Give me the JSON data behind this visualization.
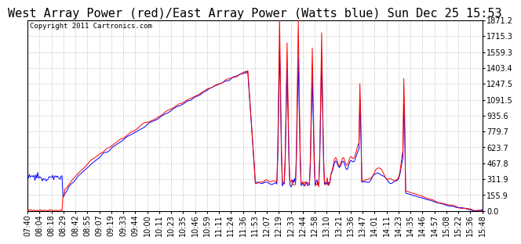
{
  "title": "West Array Power (red)/East Array Power (Watts blue) Sun Dec 25 15:53",
  "copyright": "Copyright 2011 Cartronics.com",
  "background_color": "#ffffff",
  "plot_bg_color": "#ffffff",
  "grid_color": "#bbbbbb",
  "line_color_west": "#ff0000",
  "line_color_east": "#0000ff",
  "ylim": [
    0.0,
    1871.2
  ],
  "ytick_labels": [
    "0.0",
    "155.9",
    "311.9",
    "467.8",
    "623.7",
    "779.7",
    "935.6",
    "1091.5",
    "1247.5",
    "1403.4",
    "1559.3",
    "1715.3",
    "1871.2"
  ],
  "ytick_values": [
    0.0,
    155.9,
    311.9,
    467.8,
    623.7,
    779.7,
    935.6,
    1091.5,
    1247.5,
    1403.4,
    1559.3,
    1715.3,
    1871.2
  ],
  "xtick_labels": [
    "07:40",
    "08:04",
    "08:18",
    "08:29",
    "08:42",
    "08:55",
    "09:07",
    "09:19",
    "09:33",
    "09:44",
    "10:00",
    "10:11",
    "10:23",
    "10:35",
    "10:46",
    "10:59",
    "11:11",
    "11:24",
    "11:36",
    "11:53",
    "12:07",
    "12:19",
    "12:33",
    "12:44",
    "12:58",
    "13:10",
    "13:21",
    "13:36",
    "13:47",
    "14:01",
    "14:11",
    "14:23",
    "14:35",
    "14:46",
    "14:57",
    "15:08",
    "15:22",
    "15:36",
    "15:48"
  ],
  "title_fontsize": 11,
  "copyright_fontsize": 6.5,
  "tick_fontsize": 7
}
